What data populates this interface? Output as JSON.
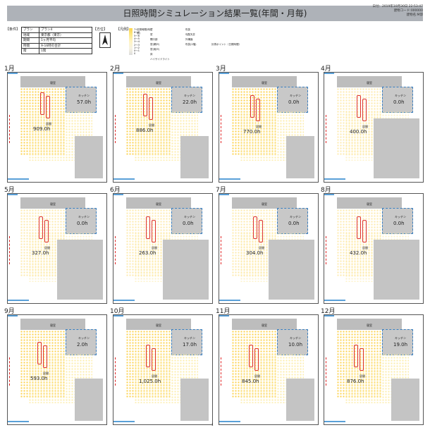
{
  "header": {
    "title": "日照時間シミュレーション結果一覧(年間・月毎)",
    "date": "日付：2019年10月30日 22:53:47",
    "code": "建物コード:000000",
    "building": "建物名:M邸"
  },
  "conditions": {
    "label": "【条件】",
    "rows": [
      {
        "k": "プラン",
        "v": "プラン4"
      },
      {
        "k": "地域",
        "v": "東京都（東京）"
      },
      {
        "k": "期間",
        "v": "1ヶ月平均"
      },
      {
        "k": "時間",
        "v": "9-16時の合計"
      },
      {
        "k": "階",
        "v": "1階"
      }
    ]
  },
  "direction": {
    "label": "【方位】"
  },
  "legend": {
    "label": "【凡例】",
    "scale_title": "日照時間(時間)",
    "scale": [
      "7〜",
      "6〜7",
      "5〜6",
      "4〜5",
      "3〜4",
      "2〜3",
      "1〜2",
      "0〜1",
      "0"
    ],
    "items": [
      "壁",
      "窓",
      "開口部",
      "窓(網戸)",
      "窓(雨戸)",
      "床",
      "ハイサイドライト",
      "吹抜",
      "勾配天井",
      "外構面",
      "吹抜(2階)",
      "計測ポイント（日照時間）"
    ]
  },
  "panels": [
    {
      "month": "1月",
      "top_room": "寝室",
      "kitchen": "キッチン",
      "kitchen_val": "57.0h",
      "living": "居間",
      "living_val": "909.0h"
    },
    {
      "month": "2月",
      "top_room": "寝室",
      "kitchen": "キッチン",
      "kitchen_val": "22.0h",
      "living": "居間",
      "living_val": "886.0h"
    },
    {
      "month": "3月",
      "top_room": "寝室",
      "kitchen": "キッチン",
      "kitchen_val": "0.0h",
      "living": "居間",
      "living_val": "770.0h"
    },
    {
      "month": "4月",
      "top_room": "寝室",
      "kitchen": "キッチン",
      "kitchen_val": "0.0h",
      "living": "居間",
      "living_val": "400.0h"
    },
    {
      "month": "5月",
      "top_room": "寝室",
      "kitchen": "キッチン",
      "kitchen_val": "0.0h",
      "living": "居間",
      "living_val": "327.0h"
    },
    {
      "month": "6月",
      "top_room": "寝室",
      "kitchen": "キッチン",
      "kitchen_val": "0.0h",
      "living": "居間",
      "living_val": "263.0h"
    },
    {
      "month": "7月",
      "top_room": "寝室",
      "kitchen": "キッチン",
      "kitchen_val": "0.0h",
      "living": "居間",
      "living_val": "304.0h"
    },
    {
      "month": "8月",
      "top_room": "寝室",
      "kitchen": "キッチン",
      "kitchen_val": "0.0h",
      "living": "居間",
      "living_val": "432.0h"
    },
    {
      "month": "9月",
      "top_room": "寝室",
      "kitchen": "キッチン",
      "kitchen_val": "2.0h",
      "living": "居間",
      "living_val": "593.0h"
    },
    {
      "month": "10月",
      "top_room": "寝室",
      "kitchen": "キッチン",
      "kitchen_val": "17.0h",
      "living": "居間",
      "living_val": "1,025.0h"
    },
    {
      "month": "11月",
      "top_room": "寝室",
      "kitchen": "キッチン",
      "kitchen_val": "10.0h",
      "living": "居間",
      "living_val": "845.0h"
    },
    {
      "month": "12月",
      "top_room": "寝室",
      "kitchen": "キッチン",
      "kitchen_val": "19.0h",
      "living": "居間",
      "living_val": "876.0h"
    }
  ],
  "footer": {
    "page": "1"
  }
}
